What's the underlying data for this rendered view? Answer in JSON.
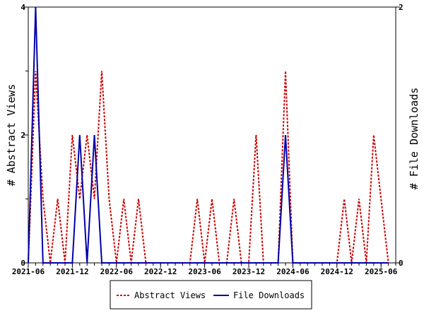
{
  "chart_data": {
    "type": "line",
    "title": "",
    "ylabel_left": "# Abstract Views",
    "ylabel_right": "# File Downloads",
    "ylim_left": [
      0,
      4
    ],
    "ylim_right": [
      0,
      2
    ],
    "y_ticks_left": [
      "0",
      "2",
      "4"
    ],
    "y_ticks_right": [
      "0",
      "1",
      "2"
    ],
    "x_labels": [
      {
        "label": "2021-06",
        "month_index": 0
      },
      {
        "label": "2021-12",
        "month_index": 6
      },
      {
        "label": "2022-06",
        "month_index": 12
      },
      {
        "label": "2022-12",
        "month_index": 18
      },
      {
        "label": "2023-06",
        "month_index": 24
      },
      {
        "label": "2023-12",
        "month_index": 30
      },
      {
        "label": "2024-06",
        "month_index": 36
      },
      {
        "label": "2024-12",
        "month_index": 42
      },
      {
        "label": "2025-06",
        "month_index": 48
      }
    ],
    "x_range_months": [
      0,
      50
    ],
    "grid": false,
    "legend_position": "bottom",
    "series": [
      {
        "name": "Abstract Views",
        "axis": "left",
        "color": "#cc0000",
        "style": "dashed",
        "values": [
          0,
          3,
          1,
          0,
          1,
          0,
          2,
          1,
          2,
          1,
          3,
          1,
          0,
          1,
          0,
          1,
          0,
          0,
          0,
          0,
          0,
          0,
          0,
          1,
          0,
          1,
          0,
          0,
          1,
          0,
          0,
          2,
          0,
          0,
          0,
          3,
          0,
          0,
          0,
          0,
          0,
          0,
          0,
          1,
          0,
          1,
          0,
          2,
          1,
          0
        ]
      },
      {
        "name": "File Downloads",
        "axis": "right",
        "color": "#0000aa",
        "style": "solid",
        "values": [
          0,
          2,
          0,
          0,
          0,
          0,
          0,
          1,
          0,
          1,
          0,
          0,
          0,
          0,
          0,
          0,
          0,
          0,
          0,
          0,
          0,
          0,
          0,
          0,
          0,
          0,
          0,
          0,
          0,
          0,
          0,
          0,
          0,
          0,
          0,
          1,
          0,
          0,
          0,
          0,
          0,
          0,
          0,
          0,
          0,
          0,
          0,
          0,
          0,
          0
        ]
      }
    ]
  }
}
